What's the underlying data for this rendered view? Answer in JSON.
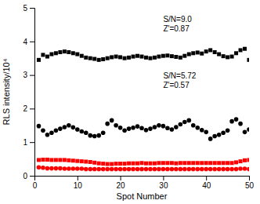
{
  "chart_data": {
    "type": "scatter",
    "xlabel": "Spot Number",
    "ylabel": "RLS intensity/10⁴",
    "annotations": [
      "S/N=9.0\nZ'=0.87",
      "S/N=5.72\nZ'=0.57"
    ],
    "x": [
      1,
      2,
      3,
      4,
      5,
      6,
      7,
      8,
      9,
      10,
      11,
      12,
      13,
      14,
      15,
      16,
      17,
      18,
      19,
      20,
      21,
      22,
      23,
      24,
      25,
      26,
      27,
      28,
      29,
      30,
      31,
      32,
      33,
      34,
      35,
      36,
      37,
      38,
      39,
      40,
      41,
      42,
      43,
      44,
      45,
      46,
      47,
      48,
      49,
      50
    ],
    "xlim": [
      0,
      50
    ],
    "ylim": [
      0,
      5
    ],
    "xticks": [
      0,
      10,
      20,
      30,
      40,
      50
    ],
    "yticks": [
      0,
      1,
      2,
      3,
      4,
      5
    ],
    "series": [
      {
        "color": "#000000",
        "marker": "square",
        "values": [
          3.45,
          3.6,
          3.55,
          3.62,
          3.65,
          3.68,
          3.7,
          3.68,
          3.65,
          3.62,
          3.57,
          3.52,
          3.5,
          3.48,
          3.45,
          3.47,
          3.5,
          3.53,
          3.55,
          3.53,
          3.5,
          3.52,
          3.55,
          3.57,
          3.55,
          3.52,
          3.5,
          3.52,
          3.55,
          3.57,
          3.58,
          3.56,
          3.54,
          3.52,
          3.57,
          3.62,
          3.65,
          3.67,
          3.64,
          3.7,
          3.74,
          3.68,
          3.62,
          3.56,
          3.53,
          3.55,
          3.65,
          3.74,
          3.78,
          3.45
        ]
      },
      {
        "color": "#000000",
        "marker": "circle",
        "values": [
          1.48,
          1.35,
          1.22,
          1.28,
          1.35,
          1.4,
          1.45,
          1.5,
          1.44,
          1.38,
          1.32,
          1.28,
          1.2,
          1.18,
          1.2,
          1.28,
          1.55,
          1.65,
          1.5,
          1.43,
          1.35,
          1.4,
          1.43,
          1.47,
          1.42,
          1.36,
          1.4,
          1.45,
          1.5,
          1.48,
          1.42,
          1.38,
          1.45,
          1.53,
          1.6,
          1.65,
          1.5,
          1.43,
          1.36,
          1.3,
          1.1,
          1.18,
          1.22,
          1.28,
          1.35,
          1.62,
          1.68,
          1.55,
          1.3,
          1.38
        ]
      },
      {
        "color": "#ff0000",
        "marker": "square",
        "values": [
          0.47,
          0.48,
          0.48,
          0.47,
          0.47,
          0.47,
          0.47,
          0.46,
          0.45,
          0.44,
          0.43,
          0.42,
          0.41,
          0.39,
          0.37,
          0.36,
          0.35,
          0.35,
          0.36,
          0.36,
          0.36,
          0.37,
          0.37,
          0.37,
          0.38,
          0.37,
          0.37,
          0.37,
          0.38,
          0.38,
          0.38,
          0.38,
          0.37,
          0.38,
          0.38,
          0.38,
          0.38,
          0.38,
          0.38,
          0.38,
          0.38,
          0.38,
          0.38,
          0.38,
          0.38,
          0.38,
          0.4,
          0.43,
          0.46,
          0.47
        ]
      },
      {
        "color": "#ff0000",
        "marker": "circle",
        "values": [
          0.25,
          0.24,
          0.22,
          0.22,
          0.22,
          0.22,
          0.21,
          0.21,
          0.21,
          0.21,
          0.21,
          0.2,
          0.2,
          0.2,
          0.2,
          0.2,
          0.2,
          0.2,
          0.2,
          0.2,
          0.2,
          0.2,
          0.2,
          0.2,
          0.2,
          0.2,
          0.2,
          0.2,
          0.2,
          0.2,
          0.2,
          0.2,
          0.2,
          0.2,
          0.2,
          0.2,
          0.2,
          0.2,
          0.2,
          0.2,
          0.2,
          0.2,
          0.2,
          0.2,
          0.2,
          0.2,
          0.2,
          0.21,
          0.21,
          0.2
        ]
      }
    ]
  }
}
